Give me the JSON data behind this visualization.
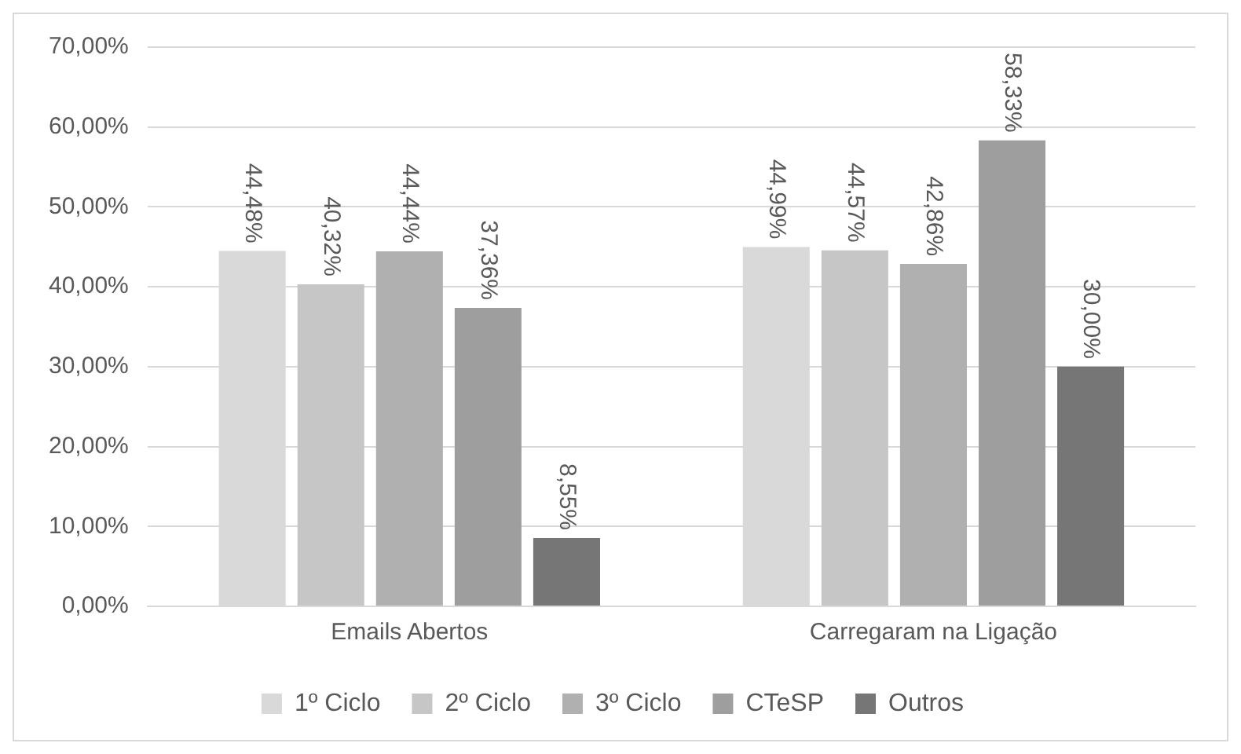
{
  "chart_data": {
    "type": "bar",
    "categories": [
      "Emails Abertos",
      "Carregaram na Ligação"
    ],
    "series": [
      {
        "name": "1º Ciclo",
        "color": "#d9d9d9",
        "values": [
          44.48,
          44.99
        ],
        "value_labels": [
          "44,48%",
          "44,99%"
        ]
      },
      {
        "name": "2º Ciclo",
        "color": "#c6c6c6",
        "values": [
          40.32,
          44.57
        ],
        "value_labels": [
          "40,32%",
          "44,57%"
        ]
      },
      {
        "name": "3º Ciclo",
        "color": "#b0b0b0",
        "values": [
          44.44,
          42.86
        ],
        "value_labels": [
          "44,44%",
          "42,86%"
        ]
      },
      {
        "name": "CTeSP",
        "color": "#9e9e9e",
        "values": [
          37.36,
          58.33
        ],
        "value_labels": [
          "37,36%",
          "58,33%"
        ]
      },
      {
        "name": "Outros",
        "color": "#767676",
        "values": [
          8.55,
          30.0
        ],
        "value_labels": [
          "8,55%",
          "30,00%"
        ]
      }
    ],
    "ylim": [
      0,
      70
    ],
    "yticks": [
      {
        "value": 0,
        "label": "0,00%"
      },
      {
        "value": 10,
        "label": "10,00%"
      },
      {
        "value": 20,
        "label": "20,00%"
      },
      {
        "value": 30,
        "label": "30,00%"
      },
      {
        "value": 40,
        "label": "40,00%"
      },
      {
        "value": 50,
        "label": "50,00%"
      },
      {
        "value": 60,
        "label": "60,00%"
      },
      {
        "value": 70,
        "label": "70,00%"
      }
    ],
    "grid": "y",
    "legend": "bottom"
  }
}
